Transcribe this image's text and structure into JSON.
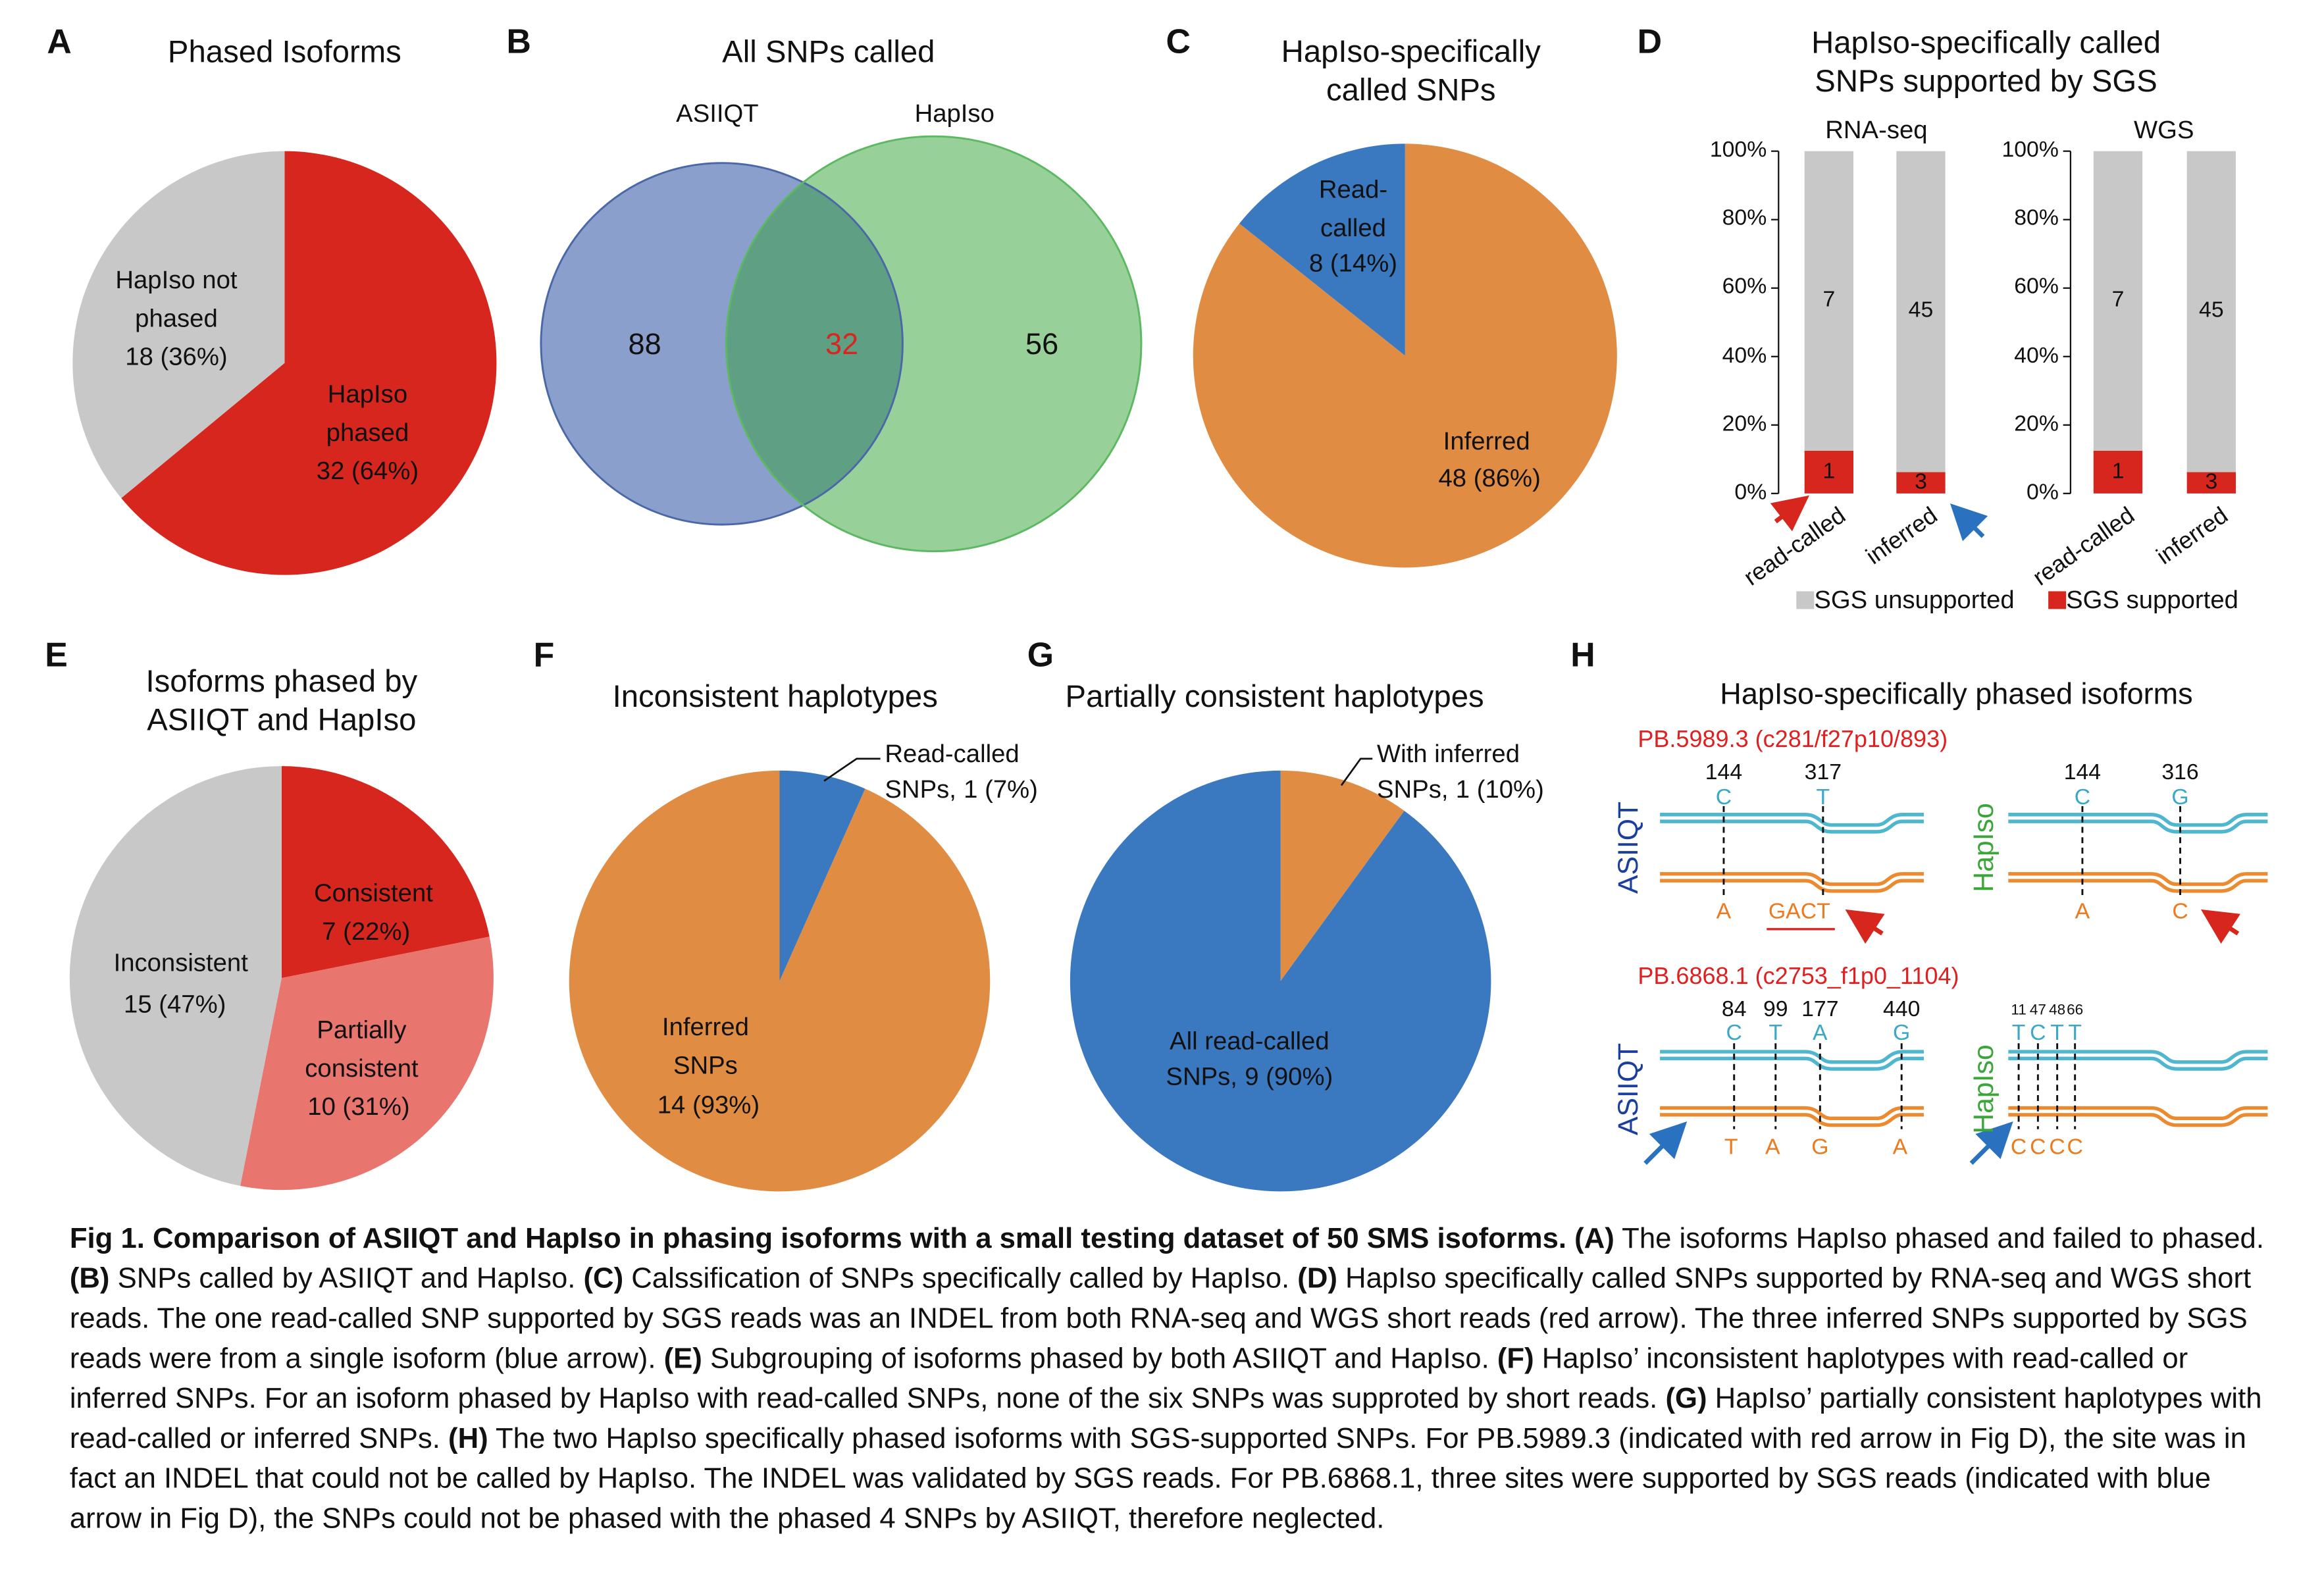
{
  "panel_labels": [
    "A",
    "B",
    "C",
    "D",
    "E",
    "F",
    "G",
    "H"
  ],
  "chart_data": [
    {
      "type": "pie",
      "title": "Phased Isoforms",
      "categories": [
        "HapIso phased",
        "HapIso not phased"
      ],
      "values": [
        32,
        18
      ],
      "value_labels": [
        "32 (64%)",
        "18 (36%)"
      ],
      "colors": [
        "#d7261e",
        "#c8c8c8"
      ]
    },
    {
      "type": "venn",
      "title": "All SNPs called",
      "sets": [
        "ASIIQT",
        "HapIso"
      ],
      "values": [
        88,
        32,
        56
      ],
      "colors": [
        "#8a9fcb",
        "#5f9f84",
        "#98d09a"
      ]
    },
    {
      "type": "pie",
      "title": "HapIso-specifically called SNPs",
      "categories": [
        "Inferred",
        "Read-called"
      ],
      "values": [
        48,
        8
      ],
      "value_labels": [
        "48 (86%)",
        "8 (14%)"
      ],
      "colors": [
        "#e08d43",
        "#3a78c0"
      ]
    },
    {
      "type": "stacked_bar",
      "title": "HapIso-specifically called SNPs supported by SGS",
      "categories": [
        "read-called",
        "inferred"
      ],
      "ylim": [
        0,
        100
      ],
      "yticks": [
        {
          "value": 0,
          "label": "0%"
        },
        {
          "value": 20,
          "label": "20%"
        },
        {
          "value": 40,
          "label": "40%"
        },
        {
          "value": 60,
          "label": "60%"
        },
        {
          "value": 80,
          "label": "80%"
        },
        {
          "value": 100,
          "label": "100%"
        }
      ],
      "series": [
        {
          "name": "SGS unsupported",
          "color": "#c8c8c8"
        },
        {
          "name": "SGS supported",
          "color": "#d7261e"
        }
      ],
      "panels": [
        {
          "title": "RNA-seq",
          "values": [
            [
              87.5,
              93.75
            ],
            [
              12.5,
              6.25
            ]
          ],
          "counts": [
            [
              7,
              45
            ],
            [
              1,
              3
            ]
          ]
        },
        {
          "title": "WGS",
          "values": [
            [
              87.5,
              93.75
            ],
            [
              12.5,
              6.25
            ]
          ],
          "counts": [
            [
              7,
              45
            ],
            [
              1,
              3
            ]
          ]
        }
      ]
    },
    {
      "type": "pie",
      "title": "Isoforms phased by ASIIQT and HapIso",
      "categories": [
        "Consistent",
        "Partially consistent",
        "Inconsistent"
      ],
      "values": [
        7,
        10,
        15
      ],
      "value_labels": [
        "7 (22%)",
        "10 (31%)",
        "15 (47%)"
      ],
      "colors": [
        "#d7261e",
        "#e8766f",
        "#c8c8c8"
      ]
    },
    {
      "type": "pie",
      "title": "Inconsistent haplotypes",
      "categories": [
        "Read-called SNPs,",
        "Inferred SNPs"
      ],
      "values": [
        1,
        14
      ],
      "value_labels": [
        "1 (7%)",
        "14 (93%)"
      ],
      "colors": [
        "#3a78c0",
        "#e08d43"
      ]
    },
    {
      "type": "pie",
      "title": "Partially consistent haplotypes",
      "categories": [
        "With inferred SNPs,",
        "All read-called SNPs,"
      ],
      "values": [
        1,
        9
      ],
      "value_labels": [
        "1 (10%)",
        "9 (90%)"
      ],
      "colors": [
        "#e08d43",
        "#3a78c0"
      ]
    }
  ],
  "panel_h": {
    "title": "HapIso-specifically phased isoforms",
    "isoforms": [
      {
        "id": "PB.5989.3 (c281/f27p10/893)",
        "haplotypes": [
          {
            "method": "ASIIQT",
            "positions": [
              144,
              317
            ],
            "top": [
              "C",
              "T"
            ],
            "bottom": [
              "A",
              "GACT"
            ]
          },
          {
            "method": "HapIso",
            "positions": [
              144,
              316
            ],
            "top": [
              "C",
              "G"
            ],
            "bottom": [
              "A",
              "C"
            ]
          }
        ]
      },
      {
        "id": "PB.6868.1 (c2753_f1p0_1104)",
        "haplotypes": [
          {
            "method": "ASIIQT",
            "positions": [
              84,
              99,
              177,
              440
            ],
            "top": [
              "C",
              "T",
              "A",
              "G"
            ],
            "bottom": [
              "T",
              "A",
              "G",
              "A"
            ]
          },
          {
            "method": "HapIso",
            "positions": [
              11,
              47,
              48,
              66
            ],
            "top": [
              "T",
              "C",
              "T",
              "T"
            ],
            "bottom": [
              "C",
              "C",
              "C",
              "C"
            ]
          }
        ]
      }
    ]
  },
  "caption": [
    {
      "text": "Fig 1. Comparison of ASIIQT and HapIso in phasing isoforms with a small testing dataset of 50 SMS isoforms. (A)",
      "bold": true
    },
    {
      "text": " The isoforms HapIso phased and failed to phased. ",
      "bold": false
    },
    {
      "text": "(B)",
      "bold": true
    },
    {
      "text": " SNPs called by ASIIQT and HapIso. ",
      "bold": false
    },
    {
      "text": "(C)",
      "bold": true
    },
    {
      "text": " Calssification of SNPs specifically called by HapIso. ",
      "bold": false
    },
    {
      "text": "(D)",
      "bold": true
    },
    {
      "text": " HapIso specifically called SNPs supported by RNA-seq and WGS short reads. The one read-called SNP supported by SGS reads was an INDEL from both RNA-seq and WGS short reads (red arrow). The three inferred SNPs supported by SGS reads were from a single isoform (blue arrow). ",
      "bold": false
    },
    {
      "text": "(E)",
      "bold": true
    },
    {
      "text": " Subgrouping of isoforms phased by both ASIIQT and HapIso. ",
      "bold": false
    },
    {
      "text": "(F)",
      "bold": true
    },
    {
      "text": " HapIso’ inconsistent haplotypes with read-called or inferred SNPs. For an isoform phased by HapIso with read-called SNPs, none of the six SNPs was supproted by short reads. ",
      "bold": false
    },
    {
      "text": "(G)",
      "bold": true
    },
    {
      "text": " HapIso’ partially consistent haplotypes with read-called or inferred SNPs. ",
      "bold": false
    },
    {
      "text": "(H)",
      "bold": true
    },
    {
      "text": " The two HapIso specifically phased isoforms with SGS-supported SNPs. For PB.5989.3 (indicated with red arrow in Fig D), the site was in fact an INDEL that could not be called by HapIso. The INDEL was validated by SGS reads. For PB.6868.1, three sites were supported by SGS reads (indicated with blue arrow in Fig D), the SNPs could not be phased with the phased 4 SNPs by ASIIQT, therefore neglected.",
      "bold": false
    }
  ]
}
